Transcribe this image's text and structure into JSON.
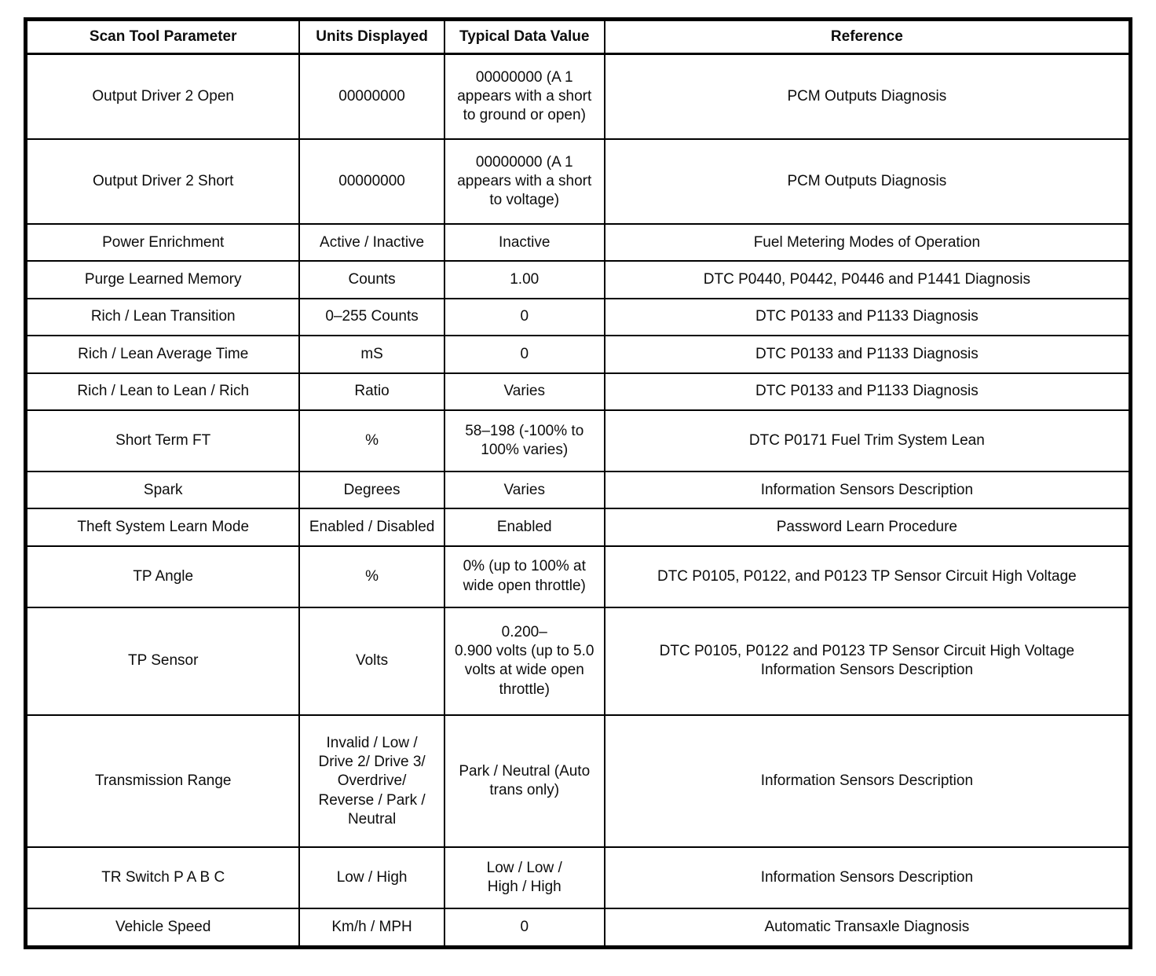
{
  "table": {
    "headers": [
      "Scan Tool Parameter",
      "Units Displayed",
      "Typical Data Value",
      "Reference"
    ],
    "rows": [
      {
        "parameter": "Output Driver 2 Open",
        "units": "00000000",
        "value": "00000000 (A 1 appears with a short to ground or open)",
        "reference": "PCM Outputs Diagnosis"
      },
      {
        "parameter": "Output Driver 2 Short",
        "units": "00000000",
        "value": "00000000 (A 1 appears with a short to voltage)",
        "reference": "PCM Outputs Diagnosis"
      },
      {
        "parameter": "Power Enrichment",
        "units": "Active / Inactive",
        "value": "Inactive",
        "reference": "Fuel Metering Modes of Operation"
      },
      {
        "parameter": "Purge Learned Memory",
        "units": "Counts",
        "value": "1.00",
        "reference": "DTC P0440, P0442, P0446 and P1441 Diagnosis"
      },
      {
        "parameter": "Rich / Lean Transition",
        "units": "0–255 Counts",
        "value": "0",
        "reference": "DTC P0133 and P1133 Diagnosis"
      },
      {
        "parameter": "Rich / Lean Average Time",
        "units": "mS",
        "value": "0",
        "reference": "DTC P0133 and P1133 Diagnosis"
      },
      {
        "parameter": "Rich / Lean to Lean / Rich",
        "units": "Ratio",
        "value": "Varies",
        "reference": "DTC P0133 and P1133 Diagnosis"
      },
      {
        "parameter": "Short Term FT",
        "units": "%",
        "value": "58–198 (-100% to 100% varies)",
        "reference": "DTC P0171 Fuel Trim System Lean"
      },
      {
        "parameter": "Spark",
        "units": "Degrees",
        "value": "Varies",
        "reference": "Information Sensors Description"
      },
      {
        "parameter": "Theft System Learn Mode",
        "units": "Enabled / Disabled",
        "value": "Enabled",
        "reference": "Password Learn Procedure"
      },
      {
        "parameter": "TP Angle",
        "units": "%",
        "value": "0% (up to 100% at wide open throttle)",
        "reference": "DTC P0105, P0122, and P0123 TP Sensor Circuit High Voltage"
      },
      {
        "parameter": "TP Sensor",
        "units": "Volts",
        "value": "0.200–\n0.900 volts (up to 5.0 volts at wide open throttle)",
        "reference": "DTC P0105, P0122 and P0123 TP Sensor Circuit High Voltage\nInformation Sensors Description"
      },
      {
        "parameter": "Transmission Range",
        "units": "Invalid / Low / Drive 2/ Drive 3/ Overdrive/ Reverse / Park / Neutral",
        "value": "Park / Neutral (Auto\ntrans only)",
        "reference": "Information Sensors Description"
      },
      {
        "parameter": "TR Switch P A B C",
        "units": "Low / High",
        "value": "Low / Low /\nHigh / High",
        "reference": "Information Sensors Description"
      },
      {
        "parameter": "Vehicle Speed",
        "units": "Km/h / MPH",
        "value": "0",
        "reference": "Automatic Transaxle Diagnosis"
      }
    ]
  }
}
